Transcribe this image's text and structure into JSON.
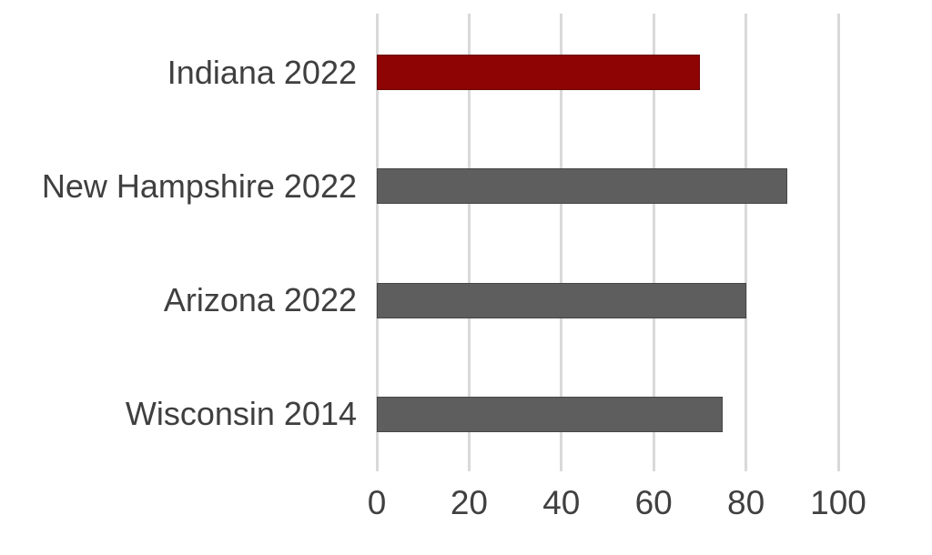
{
  "chart_data": {
    "type": "bar",
    "orientation": "horizontal",
    "title": "",
    "xlabel": "",
    "ylabel": "",
    "categories": [
      "Indiana 2022",
      "New Hampshire 2022",
      "Arizona 2022",
      "Wisconsin 2014"
    ],
    "values": [
      70,
      89,
      80,
      75
    ],
    "bar_colors": [
      "#8E0303",
      "#5E5E5E",
      "#5E5E5E",
      "#5E5E5E"
    ],
    "highlight_color": "#8E0303",
    "default_bar_color": "#5E5E5E",
    "xlim": [
      0,
      100
    ],
    "xticks": [
      0,
      20,
      40,
      60,
      80,
      100
    ],
    "grid": "vertical",
    "legend": "none",
    "gridline_color": "#D9D9D9",
    "tick_label_color": "#404040",
    "category_label_color": "#3F3F3F",
    "background_color": "#FFFFFF"
  }
}
